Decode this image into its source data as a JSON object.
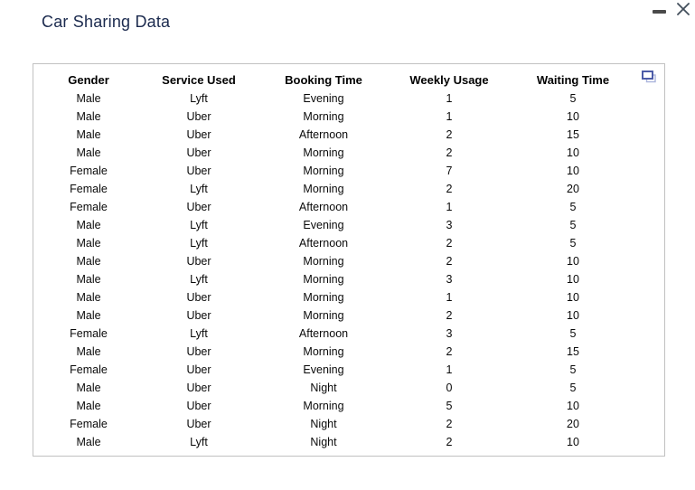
{
  "window": {
    "title": "Car Sharing Data"
  },
  "controls": {
    "minimize_label": "minimize",
    "close_label": "close"
  },
  "table": {
    "columns": [
      "Gender",
      "Service Used",
      "Booking Time",
      "Weekly Usage",
      "Waiting Time"
    ],
    "rows": [
      [
        "Male",
        "Lyft",
        "Evening",
        "1",
        "5"
      ],
      [
        "Male",
        "Uber",
        "Morning",
        "1",
        "10"
      ],
      [
        "Male",
        "Uber",
        "Afternoon",
        "2",
        "15"
      ],
      [
        "Male",
        "Uber",
        "Morning",
        "2",
        "10"
      ],
      [
        "Female",
        "Uber",
        "Morning",
        "7",
        "10"
      ],
      [
        "Female",
        "Lyft",
        "Morning",
        "2",
        "20"
      ],
      [
        "Female",
        "Uber",
        "Afternoon",
        "1",
        "5"
      ],
      [
        "Male",
        "Lyft",
        "Evening",
        "3",
        "5"
      ],
      [
        "Male",
        "Lyft",
        "Afternoon",
        "2",
        "5"
      ],
      [
        "Male",
        "Uber",
        "Morning",
        "2",
        "10"
      ],
      [
        "Male",
        "Lyft",
        "Morning",
        "3",
        "10"
      ],
      [
        "Male",
        "Uber",
        "Morning",
        "1",
        "10"
      ],
      [
        "Male",
        "Uber",
        "Morning",
        "2",
        "10"
      ],
      [
        "Female",
        "Lyft",
        "Afternoon",
        "3",
        "5"
      ],
      [
        "Male",
        "Uber",
        "Morning",
        "2",
        "15"
      ],
      [
        "Female",
        "Uber",
        "Evening",
        "1",
        "5"
      ],
      [
        "Male",
        "Uber",
        "Night",
        "0",
        "5"
      ],
      [
        "Male",
        "Uber",
        "Morning",
        "5",
        "10"
      ],
      [
        "Female",
        "Uber",
        "Night",
        "2",
        "20"
      ],
      [
        "Male",
        "Lyft",
        "Night",
        "2",
        "10"
      ]
    ],
    "copy_icon_name": "copy-table-icon"
  },
  "colors": {
    "title_navy": "#1b2a4e",
    "panel_border": "#c1c1c1",
    "copy_icon_front": "#4d5ca8",
    "copy_icon_back": "#aab4dc",
    "window_control": "#434f5c"
  }
}
